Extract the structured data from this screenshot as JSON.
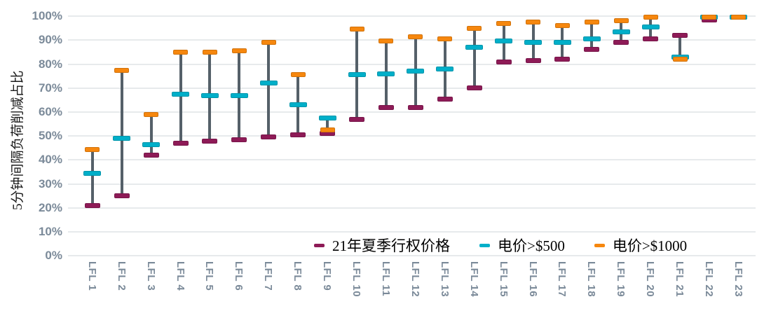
{
  "chart_data": {
    "type": "range-marker (high-low) chart",
    "title": "",
    "ylabel": "5分钟间隔负荷削减占比",
    "xlabel": "",
    "ylim": [
      0,
      100
    ],
    "grid": "horizontal, every 10%",
    "legend_position": "bottom-center, inside plot",
    "y_ticks": [
      "0%",
      "10%",
      "20%",
      "30%",
      "40%",
      "50%",
      "60%",
      "70%",
      "80%",
      "90%",
      "100%"
    ],
    "categories": [
      "LFL 1",
      "LFL 2",
      "LFL 3",
      "LFL 4",
      "LFL 5",
      "LFL 6",
      "LFL 7",
      "LFL 8",
      "LFL 9",
      "LFL 10",
      "LFL 11",
      "LFL 12",
      "LFL 13",
      "LFL 14",
      "LFL 15",
      "LFL 16",
      "LFL 17",
      "LFL 18",
      "LFL 19",
      "LFL 20",
      "LFL 21",
      "LFL 22",
      "LFL 23"
    ],
    "series": [
      {
        "id": "summer21-strike-price",
        "name": "21年夏季行权价格",
        "color": "#8E1B57",
        "values": [
          21,
          25,
          42,
          47,
          48,
          48.5,
          49.5,
          50.5,
          51,
          57,
          62,
          62,
          65.5,
          70,
          81,
          81.5,
          82,
          86,
          89,
          90.5,
          92,
          98.5,
          99.5
        ]
      },
      {
        "id": "price-gt-500",
        "name": "电价>$500",
        "color": "#00AFC9",
        "values": [
          34.5,
          49,
          46.5,
          67.5,
          67,
          67,
          72,
          63,
          57.5,
          75.5,
          76,
          77,
          78,
          87,
          89.5,
          89,
          89,
          90.5,
          93.5,
          95.5,
          83,
          99.5,
          99.5
        ]
      },
      {
        "id": "price-gt-1000",
        "name": "电价>$1000",
        "color": "#F6870E",
        "values": [
          44.5,
          77.5,
          59,
          85,
          85,
          85.5,
          89,
          75.5,
          52.5,
          94.5,
          89.5,
          91.5,
          90.5,
          95,
          97,
          97.5,
          96,
          97.5,
          98,
          99.5,
          82,
          99.5,
          99.5
        ]
      }
    ],
    "colors": {
      "stem": "#556069",
      "gridline": "#E7EAEC",
      "axis_tick_text": "#7B8A99",
      "axis_title_text": "#1A1A1A"
    }
  }
}
